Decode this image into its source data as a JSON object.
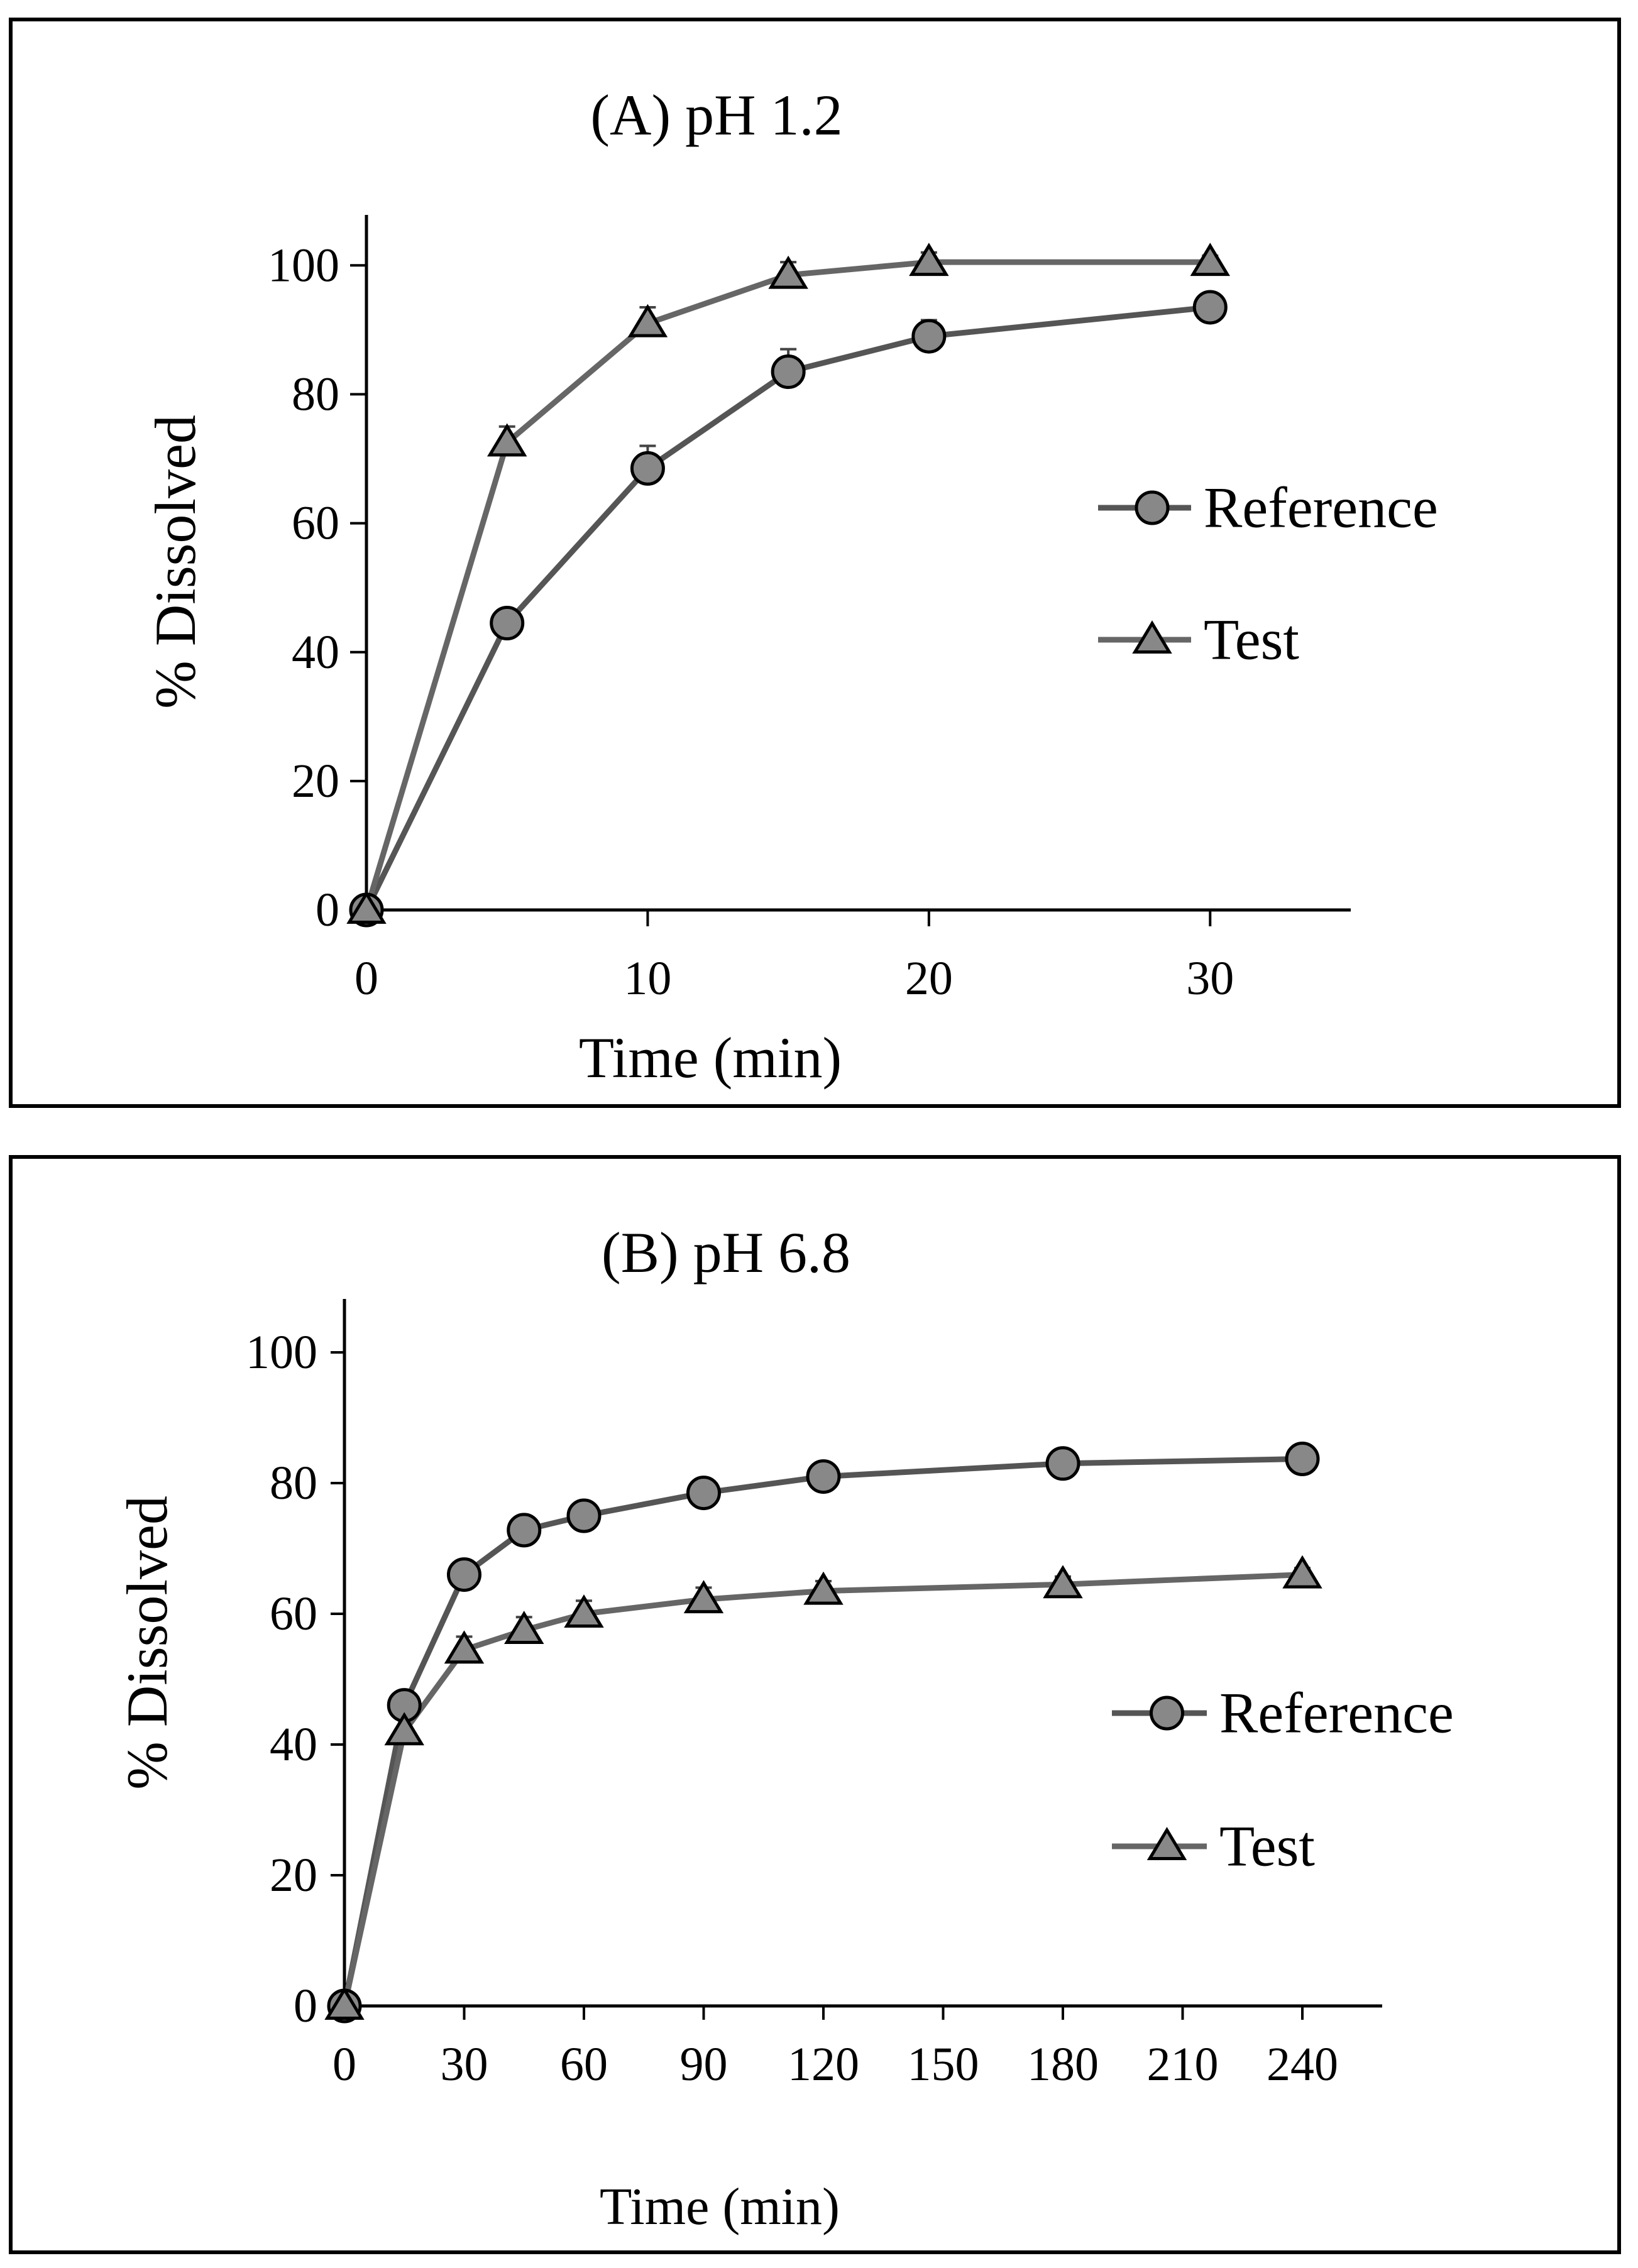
{
  "chart_data": [
    {
      "type": "line",
      "title": "(A) pH 1.2",
      "xlabel": "Time (min)",
      "ylabel": "% Dissolved",
      "xlim": [
        0,
        35
      ],
      "ylim": [
        0,
        105
      ],
      "x_ticks": [
        0,
        10,
        20,
        30
      ],
      "y_ticks": [
        0,
        20,
        40,
        60,
        80,
        100
      ],
      "x_tick_labels": [
        "0",
        "10",
        "20",
        "30"
      ],
      "y_tick_labels": [
        "0",
        "20",
        "40",
        "60",
        "80",
        "100"
      ],
      "legend_position": "right",
      "series": [
        {
          "name": "Reference",
          "marker": "circle",
          "x": [
            0,
            5,
            10,
            15,
            20,
            30
          ],
          "values": [
            0,
            44.5,
            68.5,
            83.5,
            89,
            93.5
          ],
          "error": [
            0,
            0,
            3.5,
            3.5,
            2.5,
            0
          ]
        },
        {
          "name": "Test",
          "marker": "triangle",
          "x": [
            0,
            5,
            10,
            15,
            20,
            30
          ],
          "values": [
            0,
            72.5,
            91,
            98.5,
            100.5,
            100.5
          ],
          "error": [
            0,
            2.5,
            2.5,
            2,
            1.5,
            1
          ]
        }
      ]
    },
    {
      "type": "line",
      "title": "(B) pH 6.8",
      "xlabel": "Time (min)",
      "ylabel": "% Dissolved",
      "xlim": [
        0,
        260
      ],
      "ylim": [
        0,
        105
      ],
      "x_ticks": [
        0,
        30,
        60,
        90,
        120,
        150,
        180,
        210,
        240
      ],
      "y_ticks": [
        0,
        20,
        40,
        60,
        80,
        100
      ],
      "x_tick_labels": [
        "0",
        "30",
        "60",
        "90",
        "120",
        "150",
        "180",
        "210",
        "240"
      ],
      "y_tick_labels": [
        "0",
        "20",
        "40",
        "60",
        "80",
        "100"
      ],
      "legend_position": "right",
      "series": [
        {
          "name": "Reference",
          "marker": "circle",
          "x": [
            0,
            15,
            30,
            45,
            60,
            90,
            120,
            180,
            240
          ],
          "values": [
            0,
            46,
            66,
            72.8,
            75,
            78.5,
            81,
            83,
            83.7
          ],
          "error": [
            0,
            0,
            0,
            0,
            0,
            0,
            0,
            0,
            0
          ]
        },
        {
          "name": "Test",
          "marker": "triangle",
          "x": [
            0,
            15,
            30,
            45,
            60,
            90,
            120,
            180,
            240
          ],
          "values": [
            0,
            42,
            54.5,
            57.5,
            60,
            62.2,
            63.5,
            64.5,
            66
          ],
          "error": [
            0,
            0,
            2,
            2,
            2,
            1.8,
            1.5,
            1.2,
            1
          ]
        }
      ]
    }
  ],
  "colors": {
    "reference_line": "#555555",
    "test_line": "#666666",
    "marker_fill": "#888888",
    "marker_stroke": "#000000",
    "axis": "#000000"
  }
}
